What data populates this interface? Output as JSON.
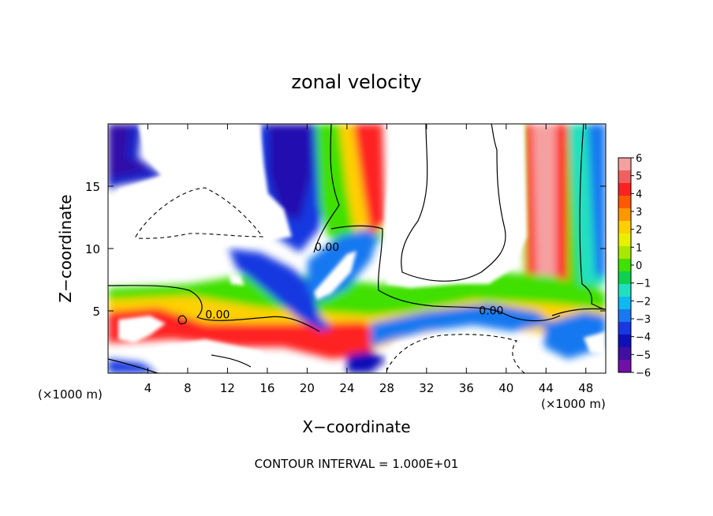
{
  "chart_data": {
    "type": "heatmap",
    "title": "zonal velocity",
    "xlabel": "X−coordinate",
    "ylabel": "Z−coordinate",
    "x_unit_left": "(×1000 m)",
    "x_unit_right": "(×1000 m)",
    "footer": "CONTOUR INTERVAL = 1.000E+01",
    "xlim": [
      0,
      50
    ],
    "ylim": [
      0,
      20
    ],
    "x_ticks": [
      4,
      8,
      12,
      16,
      20,
      24,
      28,
      32,
      36,
      40,
      44,
      48
    ],
    "y_ticks": [
      5,
      10,
      15
    ],
    "contour_labels": [
      {
        "text": "0.00",
        "x": 22,
        "y": 9.8
      },
      {
        "text": "0.00",
        "x": 11,
        "y": 4.4
      },
      {
        "text": "0.00",
        "x": 38.5,
        "y": 4.7
      }
    ],
    "colorbar": {
      "ticks": [
        "6",
        "5",
        "4",
        "3",
        "2",
        "1",
        "0",
        "−1",
        "−2",
        "−3",
        "−4",
        "−5",
        "−6"
      ],
      "colors": [
        "#f5a0a0",
        "#f06060",
        "#ff2020",
        "#ff5a00",
        "#ff9800",
        "#ffd000",
        "#e8f000",
        "#a8e800",
        "#40e000",
        "#10d050",
        "#20e0c0",
        "#10b8f0",
        "#1878f0",
        "#1838e0",
        "#1010b8",
        "#4010a0",
        "#7010a8"
      ]
    }
  }
}
